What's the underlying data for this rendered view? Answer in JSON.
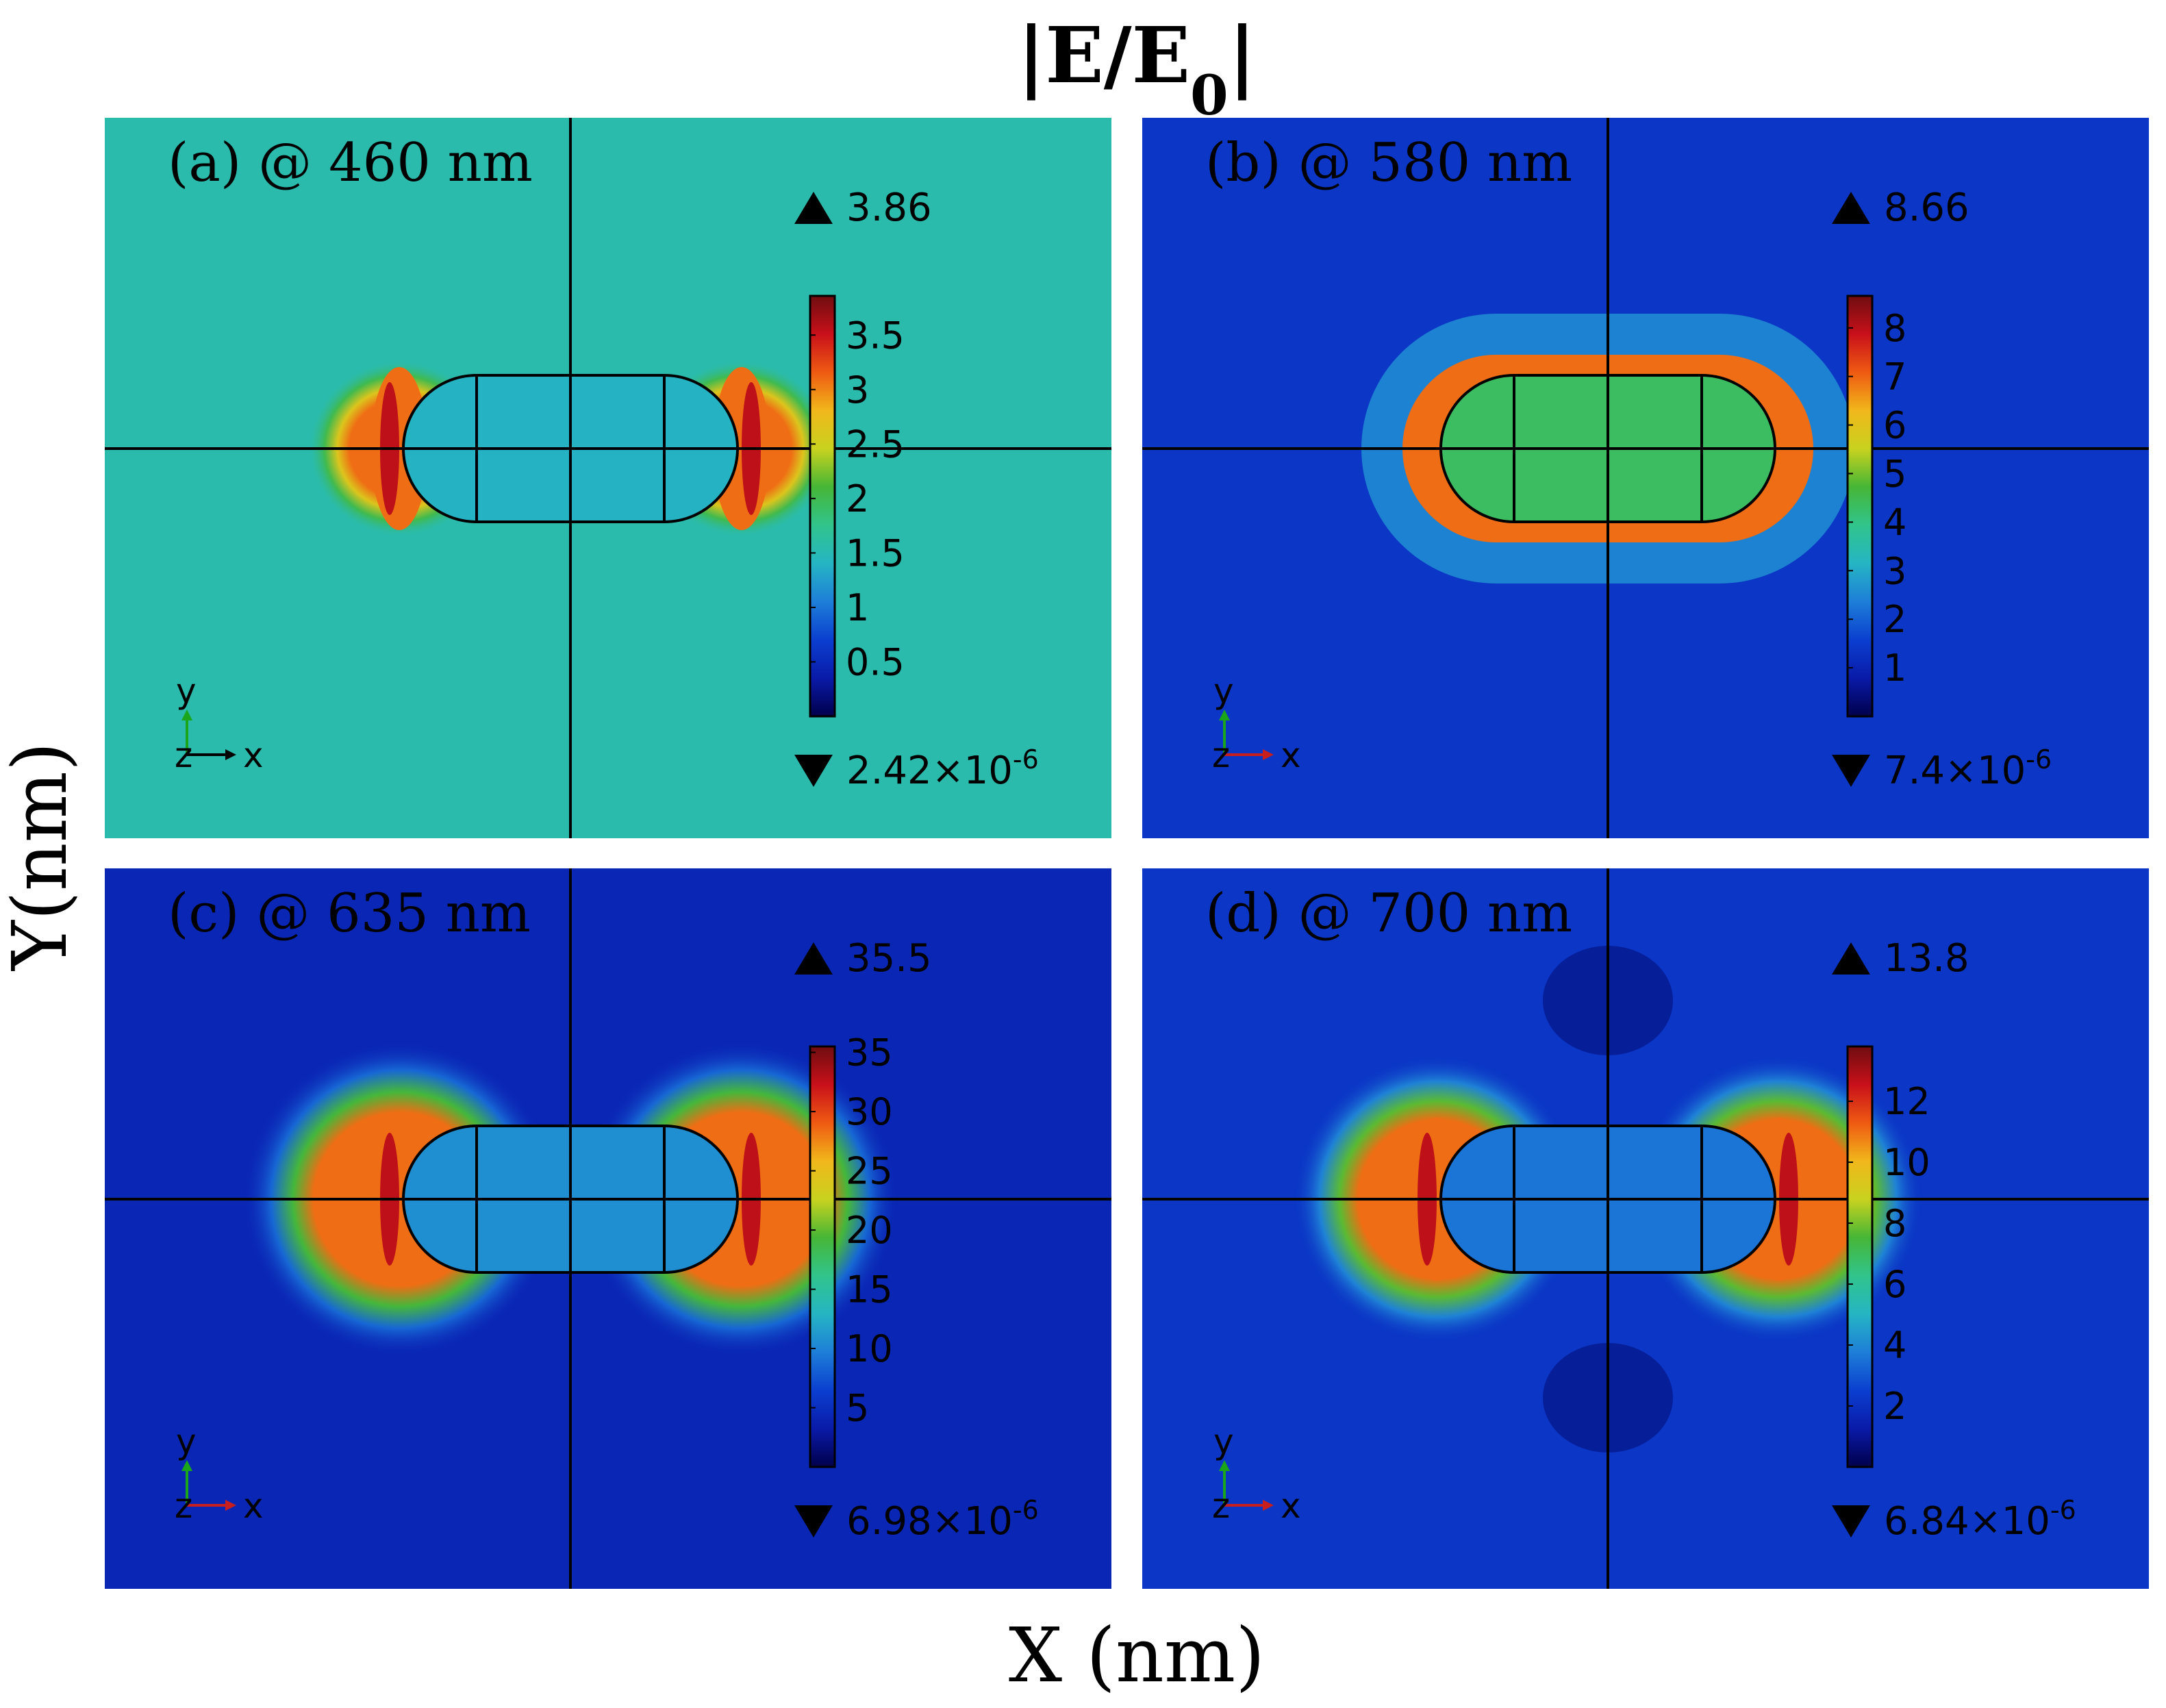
{
  "figure": {
    "title": "|E/E0|",
    "xlabel": "X (nm)",
    "ylabel": "Y(nm)"
  },
  "chart_data": [
    {
      "type": "heatmap",
      "panel_label": "(a) @ 460 nm",
      "wavelength_nm": 460,
      "max_label": "3.86",
      "min_label": "2.42×10",
      "min_exponent": "-6",
      "colorbar_ticks": [
        "0.5",
        "1",
        "1.5",
        "2",
        "2.5",
        "3",
        "3.5"
      ],
      "colorbar_values": [
        0.5,
        1,
        1.5,
        2,
        2.5,
        3,
        3.5
      ],
      "colorbar_range": [
        0.0,
        3.86
      ],
      "background_level": 0.4,
      "interior_level": 0.36,
      "halo_level": 0.8,
      "halo_spread": 0.5,
      "halo_shape": "ends"
    },
    {
      "type": "heatmap",
      "panel_label": "(b) @ 580 nm",
      "wavelength_nm": 580,
      "max_label": "8.66",
      "min_label": "7.4×10",
      "min_exponent": "-6",
      "colorbar_ticks": [
        "1",
        "2",
        "3",
        "4",
        "5",
        "6",
        "7",
        "8"
      ],
      "colorbar_values": [
        1,
        2,
        3,
        4,
        5,
        6,
        7,
        8
      ],
      "colorbar_range": [
        0.0,
        8.66
      ],
      "background_level": 0.16,
      "interior_level": 0.5,
      "halo_level": 0.8,
      "halo_spread": 1.0,
      "halo_shape": "full"
    },
    {
      "type": "heatmap",
      "panel_label": "(c) @ 635 nm",
      "wavelength_nm": 635,
      "max_label": "35.5",
      "min_label": "6.98×10",
      "min_exponent": "-6",
      "colorbar_ticks": [
        "5",
        "10",
        "15",
        "20",
        "25",
        "30",
        "35"
      ],
      "colorbar_values": [
        5,
        10,
        15,
        20,
        25,
        30,
        35
      ],
      "colorbar_range": [
        0.0,
        35.5
      ],
      "background_level": 0.12,
      "interior_level": 0.3,
      "halo_level": 0.8,
      "halo_spread": 1.0,
      "halo_shape": "ends"
    },
    {
      "type": "heatmap",
      "panel_label": "(d) @ 700 nm",
      "wavelength_nm": 700,
      "max_label": "13.8",
      "min_label": "6.84×10",
      "min_exponent": "-6",
      "colorbar_ticks": [
        "2",
        "4",
        "6",
        "8",
        "10",
        "12"
      ],
      "colorbar_values": [
        2,
        4,
        6,
        8,
        10,
        12
      ],
      "colorbar_range": [
        0.0,
        13.8
      ],
      "background_level": 0.16,
      "interior_level": 0.26,
      "halo_level": 0.8,
      "halo_spread": 0.9,
      "halo_shape": "ends",
      "dark_lobes": true
    }
  ],
  "axis_triad": {
    "y": "y",
    "z": "z",
    "x": "x"
  },
  "colors": {
    "colormap": [
      "#00004a",
      "#0a1aa8",
      "#0b3fd0",
      "#1e7ed8",
      "#25b5c3",
      "#31c48c",
      "#46b636",
      "#c8d21f",
      "#f1b71b",
      "#ef5a12",
      "#c8101a",
      "#6e0d10"
    ],
    "outline": "#000000",
    "axis_y": "#1aa51a",
    "axis_x_dark": "#c81e1e",
    "axis_x_light": "#000000"
  }
}
